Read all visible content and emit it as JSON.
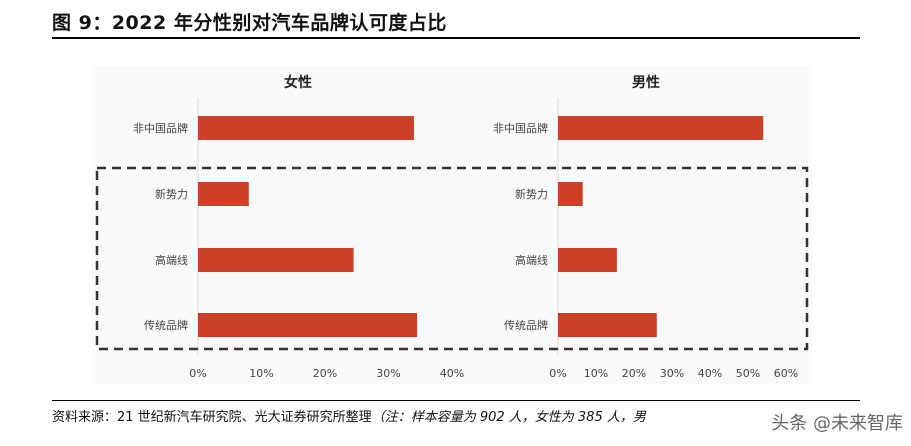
{
  "title": "图 9：2022 年分性别对汽车品牌认可度占比",
  "source": "资料来源：21 世纪新汽车研究院、光大证券研究所整理",
  "note": "（注：样本容量为 902 人，女性为 385 人，男",
  "watermark": "头条 @未来智库",
  "colors": {
    "bar": "#CC4125",
    "box": "#333333"
  },
  "chart_data": [
    {
      "type": "bar",
      "orientation": "horizontal",
      "title": "女性",
      "categories": [
        "非中国品牌",
        "新势力",
        "高端线",
        "传统品牌"
      ],
      "values": [
        34,
        8,
        24.5,
        34.5
      ],
      "unit": "%",
      "xlim": [
        0,
        40
      ],
      "xticks": [
        "0%",
        "10%",
        "20%",
        "30%",
        "40%"
      ]
    },
    {
      "type": "bar",
      "orientation": "horizontal",
      "title": "男性",
      "categories": [
        "非中国品牌",
        "新势力",
        "高端线",
        "传统品牌"
      ],
      "values": [
        54,
        6.5,
        15.5,
        26
      ],
      "unit": "%",
      "xlim": [
        0,
        60
      ],
      "xticks": [
        "0%",
        "10%",
        "20%",
        "30%",
        "40%",
        "50%",
        "60%"
      ]
    }
  ]
}
